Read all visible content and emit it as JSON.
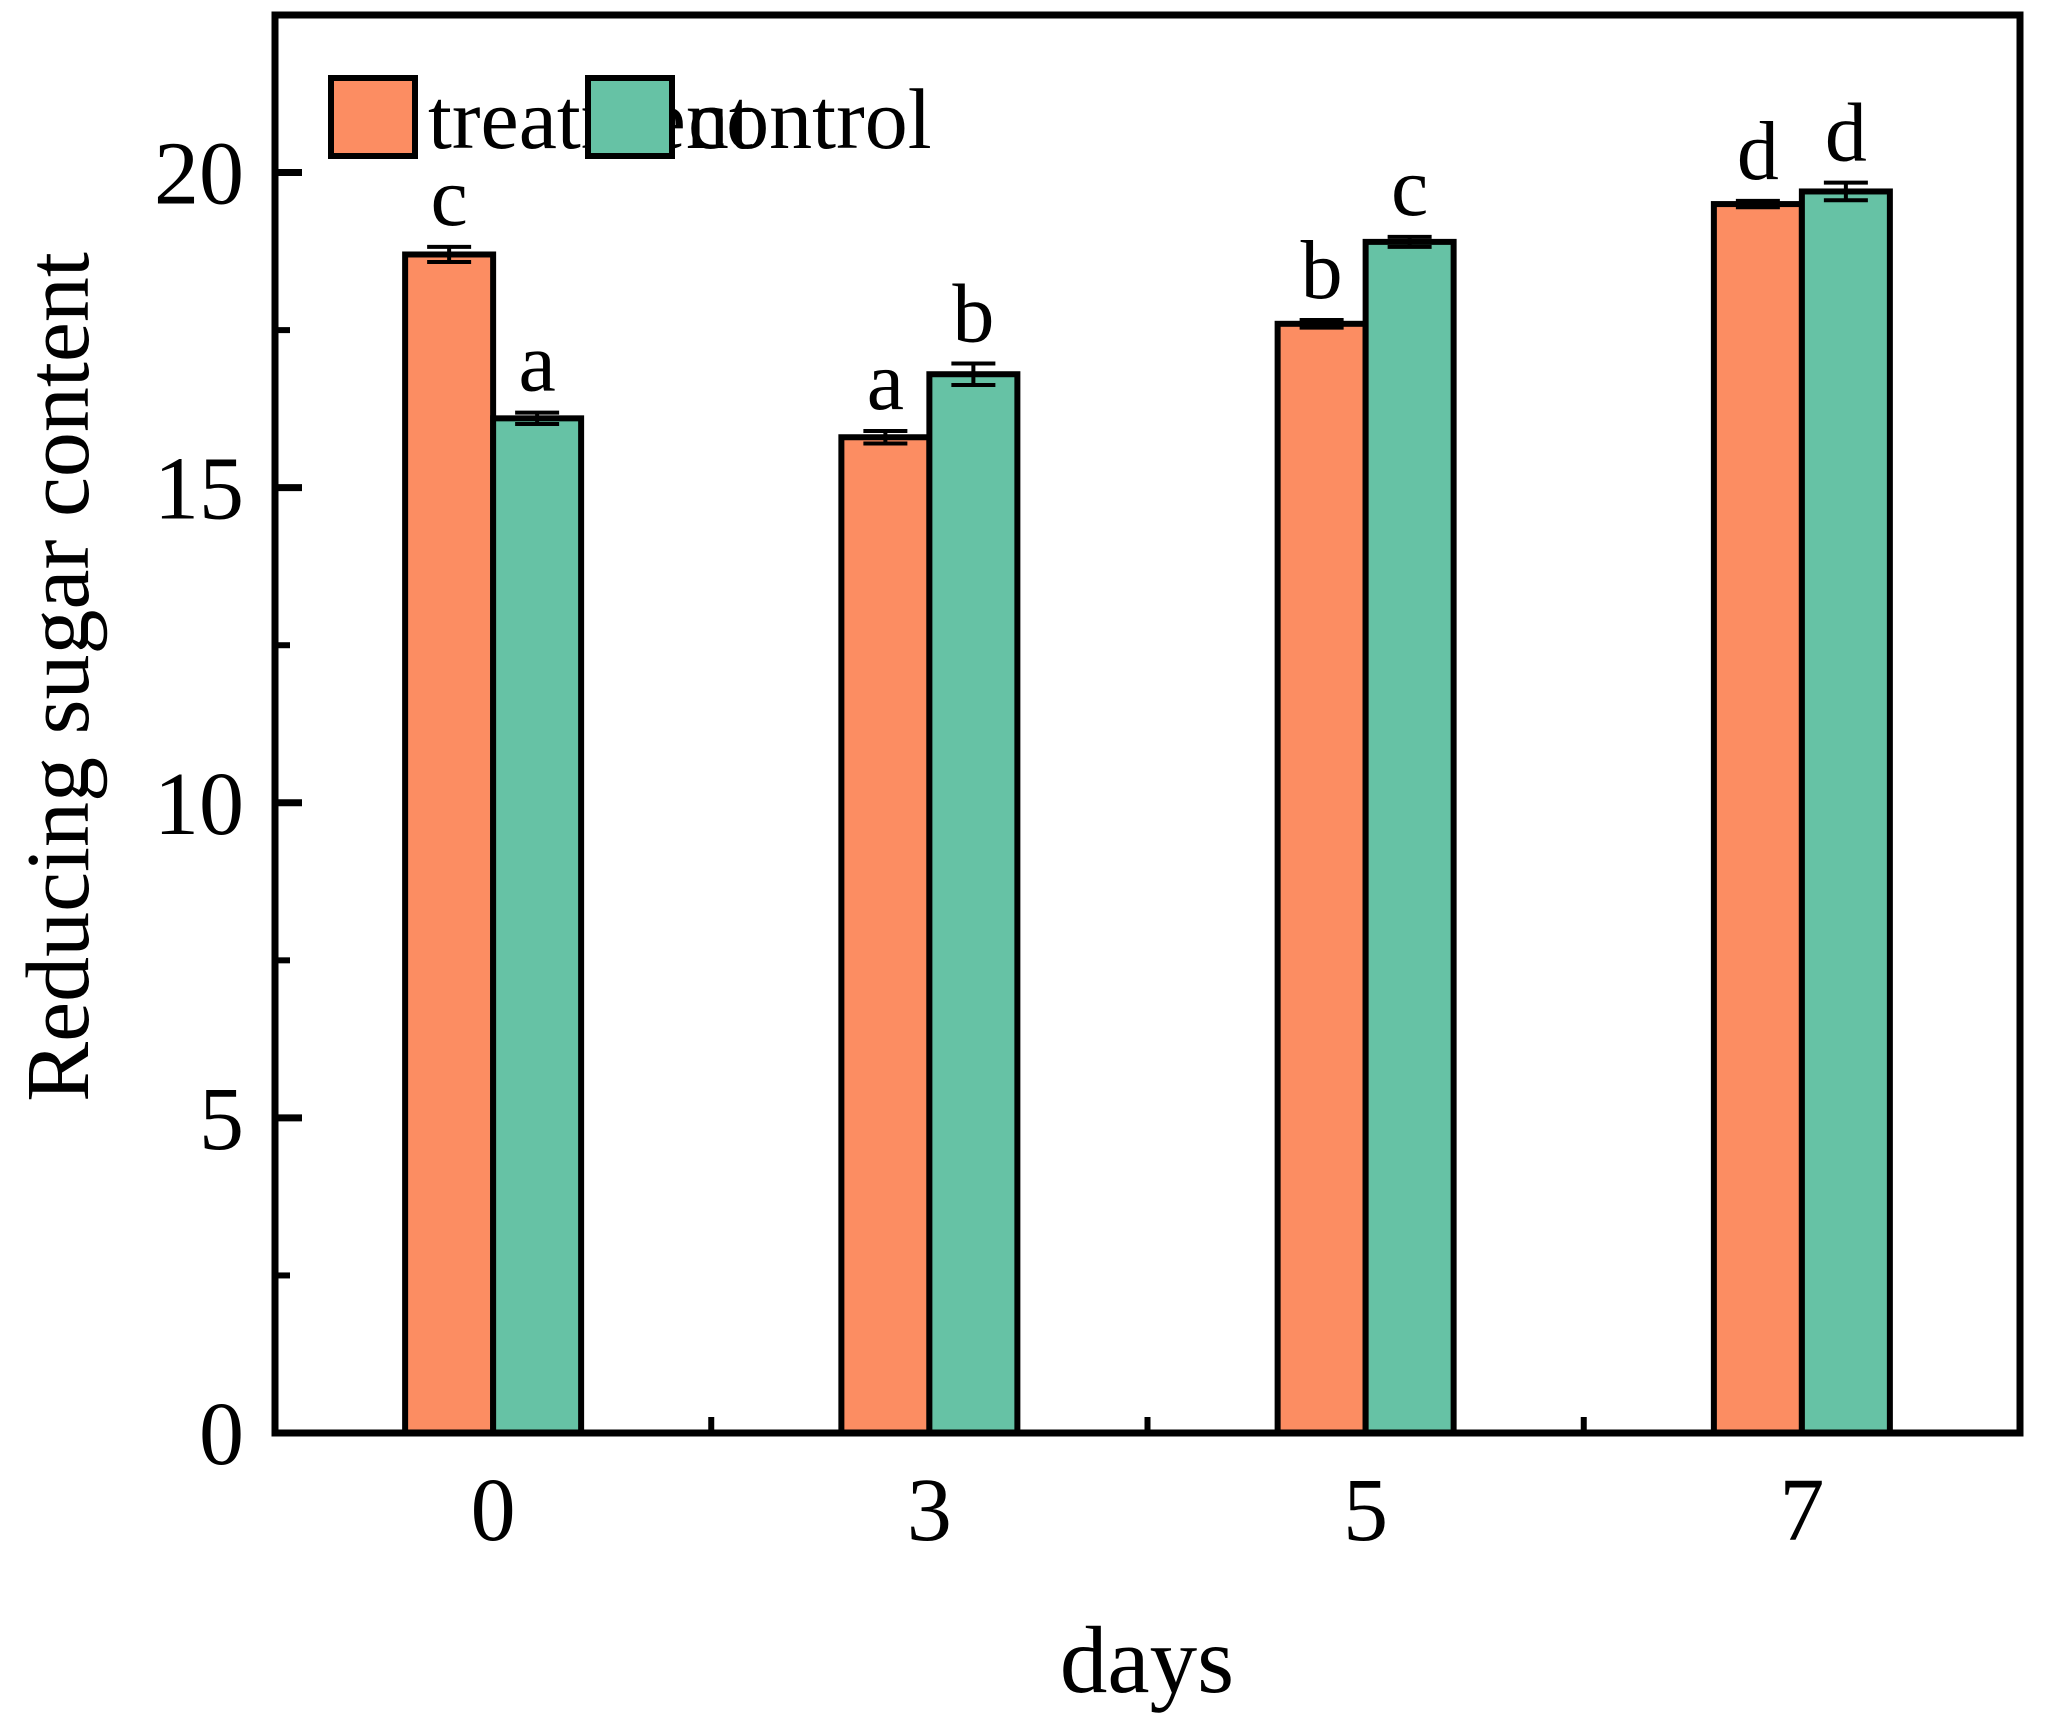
{
  "chart_data": {
    "type": "bar",
    "title": "",
    "xlabel": "days",
    "ylabel": "Reducing sugar content",
    "categories": [
      "0",
      "3",
      "5",
      "7"
    ],
    "series": [
      {
        "name": "treatment",
        "color": "#FC8D62",
        "values": [
          18.7,
          15.8,
          17.6,
          19.5
        ],
        "errors": [
          0.12,
          0.1,
          0.06,
          0.05
        ],
        "sig_letters": [
          "c",
          "a",
          "b",
          "d"
        ]
      },
      {
        "name": "control",
        "color": "#66C2A5",
        "values": [
          16.1,
          16.8,
          18.9,
          19.7
        ],
        "errors": [
          0.09,
          0.17,
          0.08,
          0.14
        ],
        "sig_letters": [
          "a",
          "b",
          "c",
          "d"
        ]
      }
    ],
    "ylim": [
      0,
      22.5
    ],
    "yticks": [
      0,
      5,
      10,
      15,
      20
    ],
    "y_minor_step": 2.5,
    "x_minor_ticks_between_categories": true,
    "legend_position": "top-left",
    "grid": false,
    "bar_edge_color": "#000000",
    "error_bar_color": "#000000",
    "axis_color": "#000000",
    "background": "#FFFFFF"
  }
}
